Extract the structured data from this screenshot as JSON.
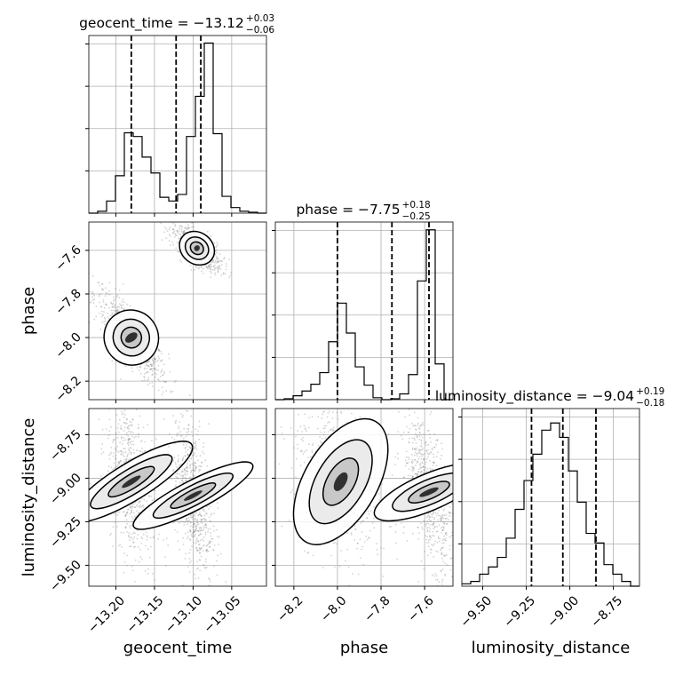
{
  "chart_data": {
    "type": "corner",
    "parameters": [
      "geocent_time",
      "phase",
      "luminosity_distance"
    ],
    "titles": [
      {
        "param": "geocent_time",
        "prefix": "geocent_time = −13.12",
        "sup": "+0.03",
        "sub": "−0.06"
      },
      {
        "param": "phase",
        "prefix": "phase = −7.75",
        "sup": "+0.18",
        "sub": "−0.25"
      },
      {
        "param": "luminosity_distance",
        "prefix": "luminosity_distance = −9.04",
        "sup": "+0.19",
        "sub": "−0.18"
      }
    ],
    "axes": {
      "geocent_time": {
        "range": [
          -13.235,
          -13.005
        ],
        "ticks": [
          -13.2,
          -13.15,
          -13.1,
          -13.05
        ],
        "tick_labels": [
          "−13.20",
          "−13.15",
          "−13.10",
          "−13.05"
        ]
      },
      "phase": {
        "range": [
          -8.285,
          -7.47
        ],
        "ticks": [
          -8.2,
          -8.0,
          -7.8,
          -7.6
        ],
        "tick_labels": [
          "−8.2",
          "−8.0",
          "−7.8",
          "−7.6"
        ]
      },
      "luminosity_distance": {
        "range": [
          -9.62,
          -8.6
        ],
        "ticks": [
          -9.5,
          -9.25,
          -9.0,
          -8.75
        ],
        "tick_labels": [
          "−9.50",
          "−9.25",
          "−9.00",
          "−8.75"
        ]
      }
    },
    "histograms": [
      {
        "param": "geocent_time",
        "bin_range": [
          -13.235,
          -13.005
        ],
        "counts": [
          0,
          2,
          13,
          40,
          86,
          82,
          60,
          43,
          17,
          13,
          20,
          82,
          125,
          182,
          85,
          18,
          6,
          2,
          1,
          0
        ],
        "quantiles": [
          -13.18,
          -13.122,
          -13.09
        ],
        "ymax": 190
      },
      {
        "param": "phase",
        "bin_range": [
          -8.285,
          -7.47
        ],
        "counts": [
          0,
          1,
          4,
          9,
          16,
          28,
          60,
          100,
          69,
          34,
          15,
          2,
          0,
          1,
          6,
          26,
          123,
          176,
          37,
          0
        ],
        "quantiles": [
          -8.0,
          -7.75,
          -7.58
        ],
        "ymax": 184
      },
      {
        "param": "luminosity_distance",
        "bin_range": [
          -9.62,
          -8.6
        ],
        "counts": [
          1,
          2,
          5,
          8,
          12,
          20,
          32,
          44,
          55,
          65,
          68,
          62,
          48,
          35,
          22,
          18,
          9,
          5,
          2,
          0
        ],
        "quantiles": [
          -9.22,
          -9.04,
          -8.85
        ],
        "ymax": 74
      }
    ],
    "scatter_panels": [
      {
        "x": "geocent_time",
        "y": "phase",
        "clusters": [
          {
            "cx": -13.18,
            "cy": -8.0,
            "sx": 0.015,
            "sy": 0.09,
            "corr": -0.85
          },
          {
            "cx": -13.095,
            "cy": -7.59,
            "sx": 0.01,
            "sy": 0.04,
            "corr": -0.7
          }
        ]
      },
      {
        "x": "geocent_time",
        "y": "luminosity_distance",
        "clusters": [
          {
            "cx": -13.18,
            "cy": -9.02,
            "sx": 0.01,
            "sy": 0.18,
            "corr": -0.4
          },
          {
            "cx": -13.1,
            "cy": -9.1,
            "sx": 0.008,
            "sy": 0.17,
            "corr": -0.4
          }
        ]
      },
      {
        "x": "phase",
        "y": "luminosity_distance",
        "clusters": [
          {
            "cx": -7.985,
            "cy": -9.02,
            "sx": 0.07,
            "sy": 0.17,
            "corr": -0.3
          },
          {
            "cx": -7.58,
            "cy": -9.08,
            "sx": 0.035,
            "sy": 0.17,
            "corr": -0.6
          }
        ]
      }
    ],
    "grid": true
  }
}
